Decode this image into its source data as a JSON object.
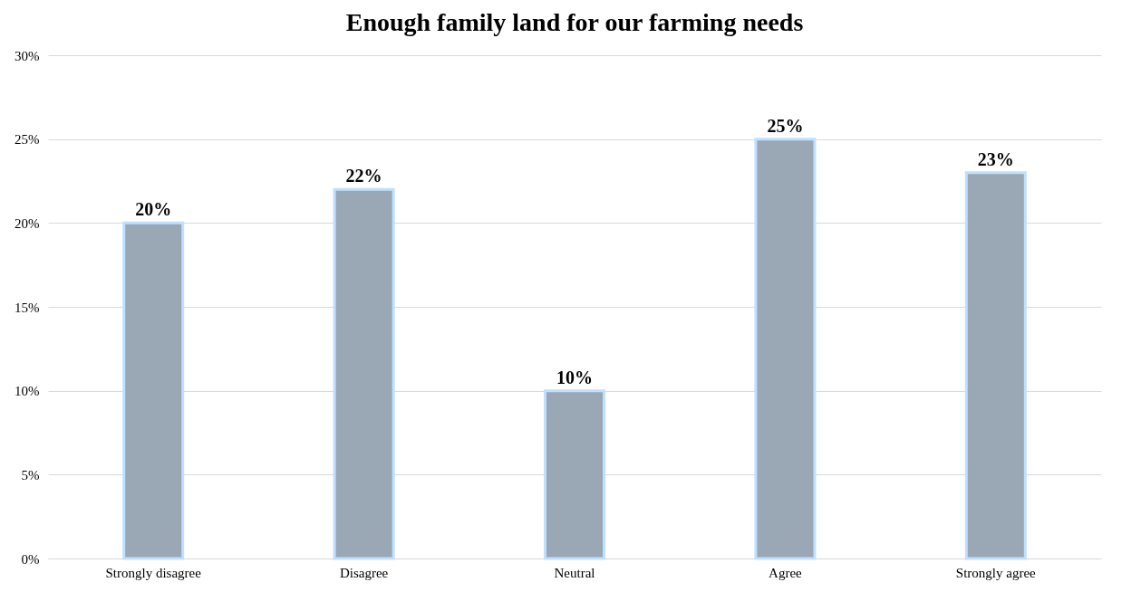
{
  "chart_data": {
    "type": "bar",
    "title": "Enough family land for our farming needs",
    "categories": [
      "Strongly disagree",
      "Disagree",
      "Neutral",
      "Agree",
      "Strongly agree"
    ],
    "values": [
      20,
      22,
      10,
      25,
      23
    ],
    "value_labels": [
      "20%",
      "22%",
      "10%",
      "25%",
      "23%"
    ],
    "color": "#9aa8b5",
    "ylim": [
      0,
      30
    ],
    "yticks": [
      {
        "value": 0,
        "label": "0%"
      },
      {
        "value": 5,
        "label": "5%"
      },
      {
        "value": 10,
        "label": "10%"
      },
      {
        "value": 15,
        "label": "15%"
      },
      {
        "value": 20,
        "label": "20%"
      },
      {
        "value": 25,
        "label": "25%"
      },
      {
        "value": 30,
        "label": "30%"
      }
    ],
    "grid": "y"
  }
}
